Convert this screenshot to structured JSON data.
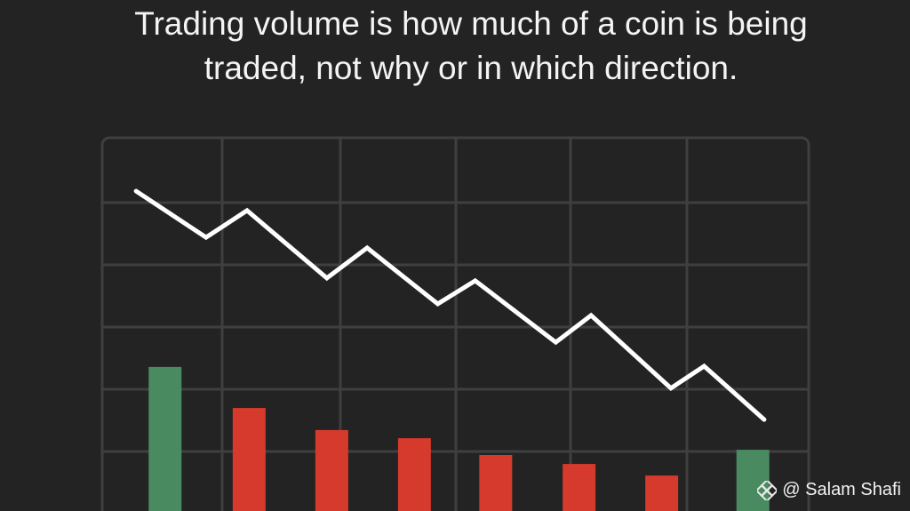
{
  "chart_data": {
    "type": "combo",
    "title": "Trading volume is how much of a coin is being traded, not why or in which direction.",
    "xlim": [
      0,
      100
    ],
    "ylim": [
      0,
      100
    ],
    "series": [
      {
        "type": "line",
        "color": "#ffffff",
        "x": [
          4.8,
          14.7,
          20.5,
          31.8,
          37.5,
          47.5,
          52.8,
          64.2,
          69.2,
          80.5,
          85.2,
          93.7
        ],
        "values": [
          85.7,
          73.3,
          80.5,
          62.4,
          70.5,
          55.5,
          61.7,
          45.2,
          52.4,
          32.9,
          38.8,
          24.5
        ]
      },
      {
        "type": "bar",
        "x": [
          8.9,
          20.8,
          32.5,
          44.2,
          55.7,
          67.5,
          79.2,
          92.1
        ],
        "values": [
          38.6,
          27.6,
          21.7,
          19.5,
          15.0,
          12.6,
          9.5,
          16.4
        ],
        "colors": [
          "#4a8a60",
          "#d63a2c",
          "#d63a2c",
          "#d63a2c",
          "#d63a2c",
          "#d63a2c",
          "#d63a2c",
          "#4a8a60"
        ]
      }
    ]
  },
  "watermark": "@ Salam Shafi"
}
